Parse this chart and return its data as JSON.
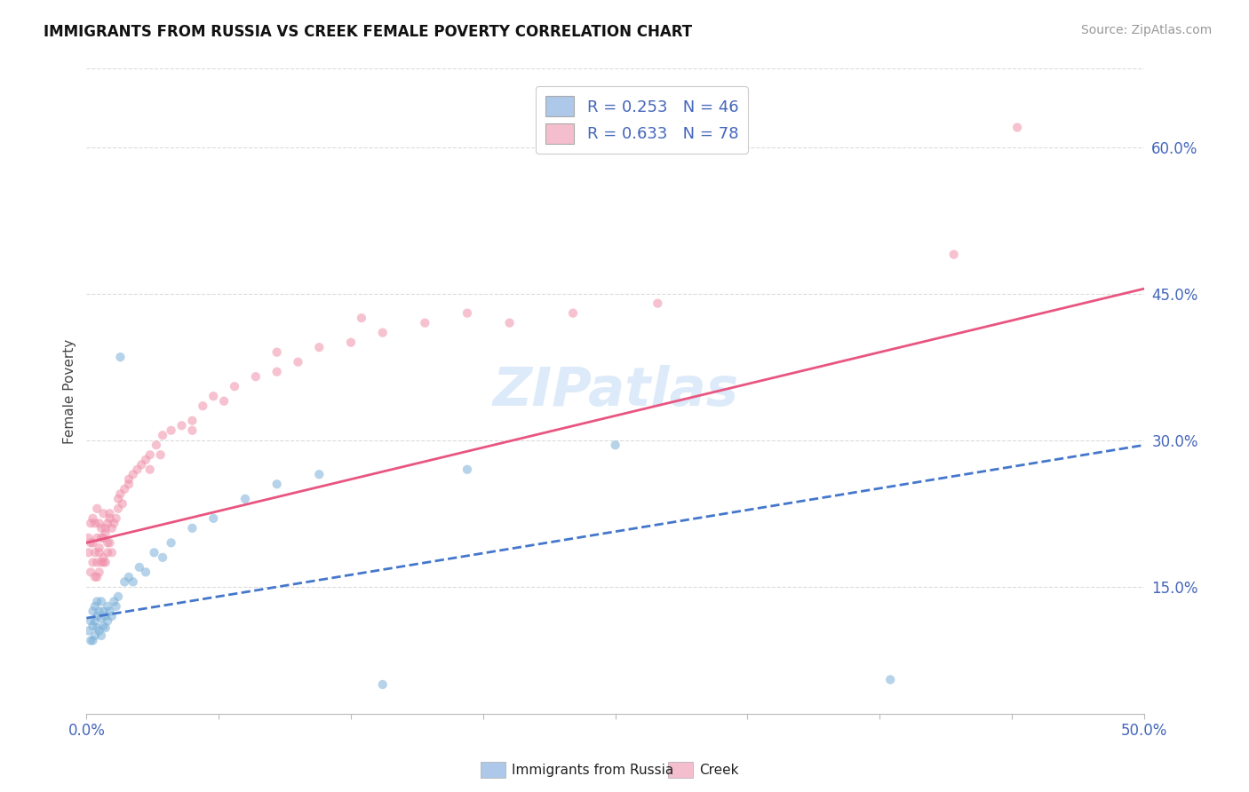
{
  "title": "IMMIGRANTS FROM RUSSIA VS CREEK FEMALE POVERTY CORRELATION CHART",
  "source": "Source: ZipAtlas.com",
  "ylabel": "Female Poverty",
  "right_yticks": [
    0.15,
    0.3,
    0.45,
    0.6
  ],
  "right_yticklabels": [
    "15.0%",
    "30.0%",
    "45.0%",
    "60.0%"
  ],
  "xlim": [
    0.0,
    0.5
  ],
  "ylim": [
    0.02,
    0.68
  ],
  "watermark_text": "ZIPatlas",
  "legend_labels": [
    "R = 0.253   N = 46",
    "R = 0.633   N = 78"
  ],
  "legend_patch_colors": [
    "#adc8e8",
    "#f5bece"
  ],
  "blue_scatter_color": "#7ab0d8",
  "pink_scatter_color": "#f090aa",
  "blue_line_color": "#4477cc",
  "pink_line_color": "#e85580",
  "blue_line_style": "--",
  "pink_line_style": "-",
  "scatter_size": 55,
  "scatter_alpha": 0.55,
  "blue_scatter_x": [
    0.001,
    0.002,
    0.002,
    0.003,
    0.003,
    0.003,
    0.004,
    0.004,
    0.004,
    0.005,
    0.005,
    0.005,
    0.006,
    0.006,
    0.007,
    0.007,
    0.007,
    0.008,
    0.008,
    0.009,
    0.009,
    0.01,
    0.01,
    0.011,
    0.012,
    0.013,
    0.014,
    0.015,
    0.016,
    0.018,
    0.02,
    0.022,
    0.025,
    0.028,
    0.032,
    0.036,
    0.04,
    0.05,
    0.06,
    0.075,
    0.09,
    0.11,
    0.14,
    0.18,
    0.25,
    0.38
  ],
  "blue_scatter_y": [
    0.105,
    0.095,
    0.115,
    0.095,
    0.11,
    0.125,
    0.1,
    0.115,
    0.13,
    0.108,
    0.12,
    0.135,
    0.105,
    0.125,
    0.1,
    0.118,
    0.135,
    0.11,
    0.125,
    0.108,
    0.12,
    0.115,
    0.13,
    0.125,
    0.12,
    0.135,
    0.13,
    0.14,
    0.385,
    0.155,
    0.16,
    0.155,
    0.17,
    0.165,
    0.185,
    0.18,
    0.195,
    0.21,
    0.22,
    0.24,
    0.255,
    0.265,
    0.05,
    0.27,
    0.295,
    0.055
  ],
  "pink_scatter_x": [
    0.001,
    0.001,
    0.002,
    0.002,
    0.002,
    0.003,
    0.003,
    0.003,
    0.004,
    0.004,
    0.004,
    0.005,
    0.005,
    0.005,
    0.006,
    0.006,
    0.006,
    0.007,
    0.007,
    0.008,
    0.008,
    0.008,
    0.009,
    0.009,
    0.01,
    0.01,
    0.011,
    0.011,
    0.012,
    0.013,
    0.014,
    0.015,
    0.016,
    0.017,
    0.018,
    0.02,
    0.022,
    0.024,
    0.026,
    0.028,
    0.03,
    0.033,
    0.036,
    0.04,
    0.045,
    0.05,
    0.055,
    0.06,
    0.07,
    0.08,
    0.09,
    0.1,
    0.11,
    0.125,
    0.14,
    0.16,
    0.18,
    0.2,
    0.23,
    0.27,
    0.005,
    0.006,
    0.007,
    0.008,
    0.009,
    0.01,
    0.011,
    0.012,
    0.015,
    0.02,
    0.03,
    0.035,
    0.05,
    0.065,
    0.09,
    0.13,
    0.41,
    0.44
  ],
  "pink_scatter_y": [
    0.185,
    0.2,
    0.165,
    0.195,
    0.215,
    0.175,
    0.195,
    0.22,
    0.16,
    0.185,
    0.215,
    0.175,
    0.2,
    0.23,
    0.165,
    0.19,
    0.215,
    0.175,
    0.21,
    0.18,
    0.2,
    0.225,
    0.175,
    0.205,
    0.185,
    0.215,
    0.195,
    0.22,
    0.21,
    0.215,
    0.22,
    0.23,
    0.245,
    0.235,
    0.25,
    0.26,
    0.265,
    0.27,
    0.275,
    0.28,
    0.285,
    0.295,
    0.305,
    0.31,
    0.315,
    0.32,
    0.335,
    0.345,
    0.355,
    0.365,
    0.37,
    0.38,
    0.395,
    0.4,
    0.41,
    0.42,
    0.43,
    0.42,
    0.43,
    0.44,
    0.16,
    0.185,
    0.2,
    0.175,
    0.21,
    0.195,
    0.225,
    0.185,
    0.24,
    0.255,
    0.27,
    0.285,
    0.31,
    0.34,
    0.39,
    0.425,
    0.49,
    0.62
  ],
  "blue_line_x": [
    0.0,
    0.5
  ],
  "blue_line_y": [
    0.118,
    0.295
  ],
  "pink_line_x": [
    0.0,
    0.5
  ],
  "pink_line_y": [
    0.195,
    0.455
  ],
  "grid_color": "#cccccc",
  "grid_alpha": 0.7,
  "title_fontsize": 12,
  "axis_label_color": "#4466bb",
  "tick_color": "#4466bb",
  "ylabel_color": "#444444",
  "ylabel_fontsize": 11
}
